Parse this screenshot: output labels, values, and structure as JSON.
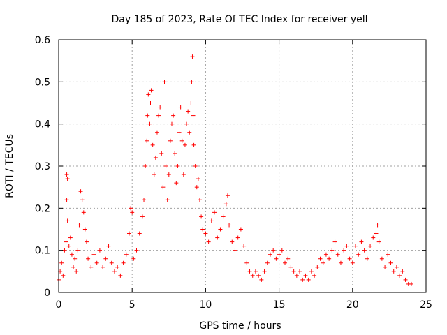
{
  "chart_data": {
    "type": "scatter",
    "title": "Day 185 of 2023, Rate Of TEC Index for receiver yell",
    "xlabel": "GPS time / hours",
    "ylabel": "ROTI / TECUs",
    "xlim": [
      0,
      25
    ],
    "ylim": [
      0,
      0.6
    ],
    "x_ticks": [
      0,
      5,
      10,
      15,
      20,
      25
    ],
    "x_tick_labels": [
      "0",
      "5",
      "10",
      "15",
      "20",
      "25"
    ],
    "y_ticks": [
      0,
      0.1,
      0.2,
      0.3,
      0.4,
      0.5,
      0.6
    ],
    "y_tick_labels": [
      "0",
      "0.1",
      "0.2",
      "0.3",
      "0.4",
      "0.5",
      "0.6"
    ],
    "grid": true,
    "marker": "+",
    "color": "#ff0000",
    "series": [
      {
        "name": "ROTI",
        "points": [
          [
            0.0,
            0.03
          ],
          [
            0.1,
            0.05
          ],
          [
            0.2,
            0.07
          ],
          [
            0.3,
            0.04
          ],
          [
            0.4,
            0.1
          ],
          [
            0.5,
            0.12
          ],
          [
            0.55,
            0.28
          ],
          [
            0.6,
            0.27
          ],
          [
            0.55,
            0.22
          ],
          [
            0.6,
            0.17
          ],
          [
            0.7,
            0.11
          ],
          [
            0.8,
            0.13
          ],
          [
            0.9,
            0.09
          ],
          [
            1.0,
            0.06
          ],
          [
            1.1,
            0.08
          ],
          [
            1.2,
            0.05
          ],
          [
            1.3,
            0.1
          ],
          [
            1.4,
            0.16
          ],
          [
            1.5,
            0.24
          ],
          [
            1.6,
            0.22
          ],
          [
            1.7,
            0.19
          ],
          [
            1.8,
            0.15
          ],
          [
            1.9,
            0.12
          ],
          [
            2.0,
            0.08
          ],
          [
            2.2,
            0.06
          ],
          [
            2.4,
            0.09
          ],
          [
            2.6,
            0.07
          ],
          [
            2.8,
            0.1
          ],
          [
            3.0,
            0.06
          ],
          [
            3.2,
            0.08
          ],
          [
            3.4,
            0.11
          ],
          [
            3.6,
            0.07
          ],
          [
            3.8,
            0.05
          ],
          [
            4.0,
            0.06
          ],
          [
            4.2,
            0.04
          ],
          [
            4.4,
            0.07
          ],
          [
            4.6,
            0.09
          ],
          [
            4.8,
            0.14
          ],
          [
            4.9,
            0.2
          ],
          [
            5.0,
            0.19
          ],
          [
            5.1,
            0.08
          ],
          [
            5.3,
            0.1
          ],
          [
            5.5,
            0.14
          ],
          [
            5.7,
            0.18
          ],
          [
            5.8,
            0.22
          ],
          [
            5.9,
            0.3
          ],
          [
            6.0,
            0.36
          ],
          [
            6.05,
            0.42
          ],
          [
            6.1,
            0.47
          ],
          [
            6.2,
            0.4
          ],
          [
            6.25,
            0.45
          ],
          [
            6.3,
            0.48
          ],
          [
            6.4,
            0.35
          ],
          [
            6.5,
            0.28
          ],
          [
            6.6,
            0.32
          ],
          [
            6.7,
            0.38
          ],
          [
            6.8,
            0.42
          ],
          [
            6.9,
            0.44
          ],
          [
            7.0,
            0.33
          ],
          [
            7.1,
            0.25
          ],
          [
            7.2,
            0.5
          ],
          [
            7.3,
            0.3
          ],
          [
            7.4,
            0.22
          ],
          [
            7.5,
            0.28
          ],
          [
            7.6,
            0.36
          ],
          [
            7.7,
            0.4
          ],
          [
            7.8,
            0.42
          ],
          [
            7.9,
            0.33
          ],
          [
            8.0,
            0.26
          ],
          [
            8.1,
            0.3
          ],
          [
            8.2,
            0.38
          ],
          [
            8.3,
            0.44
          ],
          [
            8.4,
            0.36
          ],
          [
            8.5,
            0.28
          ],
          [
            8.6,
            0.35
          ],
          [
            8.7,
            0.4
          ],
          [
            8.8,
            0.43
          ],
          [
            8.9,
            0.38
          ],
          [
            9.0,
            0.45
          ],
          [
            9.05,
            0.5
          ],
          [
            9.1,
            0.56
          ],
          [
            9.15,
            0.42
          ],
          [
            9.2,
            0.35
          ],
          [
            9.3,
            0.3
          ],
          [
            9.4,
            0.25
          ],
          [
            9.5,
            0.27
          ],
          [
            9.6,
            0.22
          ],
          [
            9.7,
            0.18
          ],
          [
            9.8,
            0.15
          ],
          [
            10.0,
            0.14
          ],
          [
            10.2,
            0.12
          ],
          [
            10.4,
            0.17
          ],
          [
            10.6,
            0.19
          ],
          [
            10.8,
            0.13
          ],
          [
            11.0,
            0.15
          ],
          [
            11.2,
            0.18
          ],
          [
            11.4,
            0.21
          ],
          [
            11.5,
            0.23
          ],
          [
            11.6,
            0.16
          ],
          [
            11.8,
            0.12
          ],
          [
            12.0,
            0.1
          ],
          [
            12.2,
            0.13
          ],
          [
            12.4,
            0.15
          ],
          [
            12.6,
            0.11
          ],
          [
            12.8,
            0.07
          ],
          [
            13.0,
            0.05
          ],
          [
            13.2,
            0.04
          ],
          [
            13.4,
            0.05
          ],
          [
            13.6,
            0.04
          ],
          [
            13.8,
            0.03
          ],
          [
            14.0,
            0.05
          ],
          [
            14.2,
            0.07
          ],
          [
            14.4,
            0.09
          ],
          [
            14.6,
            0.1
          ],
          [
            14.8,
            0.08
          ],
          [
            15.0,
            0.09
          ],
          [
            15.2,
            0.1
          ],
          [
            15.4,
            0.07
          ],
          [
            15.6,
            0.08
          ],
          [
            15.8,
            0.06
          ],
          [
            16.0,
            0.05
          ],
          [
            16.2,
            0.04
          ],
          [
            16.4,
            0.05
          ],
          [
            16.6,
            0.03
          ],
          [
            16.8,
            0.04
          ],
          [
            17.0,
            0.03
          ],
          [
            17.2,
            0.05
          ],
          [
            17.4,
            0.04
          ],
          [
            17.6,
            0.06
          ],
          [
            17.8,
            0.08
          ],
          [
            18.0,
            0.07
          ],
          [
            18.2,
            0.09
          ],
          [
            18.4,
            0.08
          ],
          [
            18.6,
            0.1
          ],
          [
            18.8,
            0.12
          ],
          [
            19.0,
            0.09
          ],
          [
            19.2,
            0.07
          ],
          [
            19.4,
            0.1
          ],
          [
            19.6,
            0.11
          ],
          [
            19.8,
            0.08
          ],
          [
            20.0,
            0.07
          ],
          [
            20.2,
            0.11
          ],
          [
            20.4,
            0.09
          ],
          [
            20.6,
            0.12
          ],
          [
            20.8,
            0.1
          ],
          [
            21.0,
            0.08
          ],
          [
            21.2,
            0.11
          ],
          [
            21.4,
            0.13
          ],
          [
            21.6,
            0.14
          ],
          [
            21.7,
            0.16
          ],
          [
            21.8,
            0.12
          ],
          [
            22.0,
            0.08
          ],
          [
            22.2,
            0.06
          ],
          [
            22.4,
            0.09
          ],
          [
            22.6,
            0.07
          ],
          [
            22.8,
            0.05
          ],
          [
            23.0,
            0.06
          ],
          [
            23.2,
            0.04
          ],
          [
            23.4,
            0.05
          ],
          [
            23.6,
            0.03
          ],
          [
            23.8,
            0.02
          ],
          [
            24.0,
            0.02
          ]
        ]
      }
    ]
  }
}
